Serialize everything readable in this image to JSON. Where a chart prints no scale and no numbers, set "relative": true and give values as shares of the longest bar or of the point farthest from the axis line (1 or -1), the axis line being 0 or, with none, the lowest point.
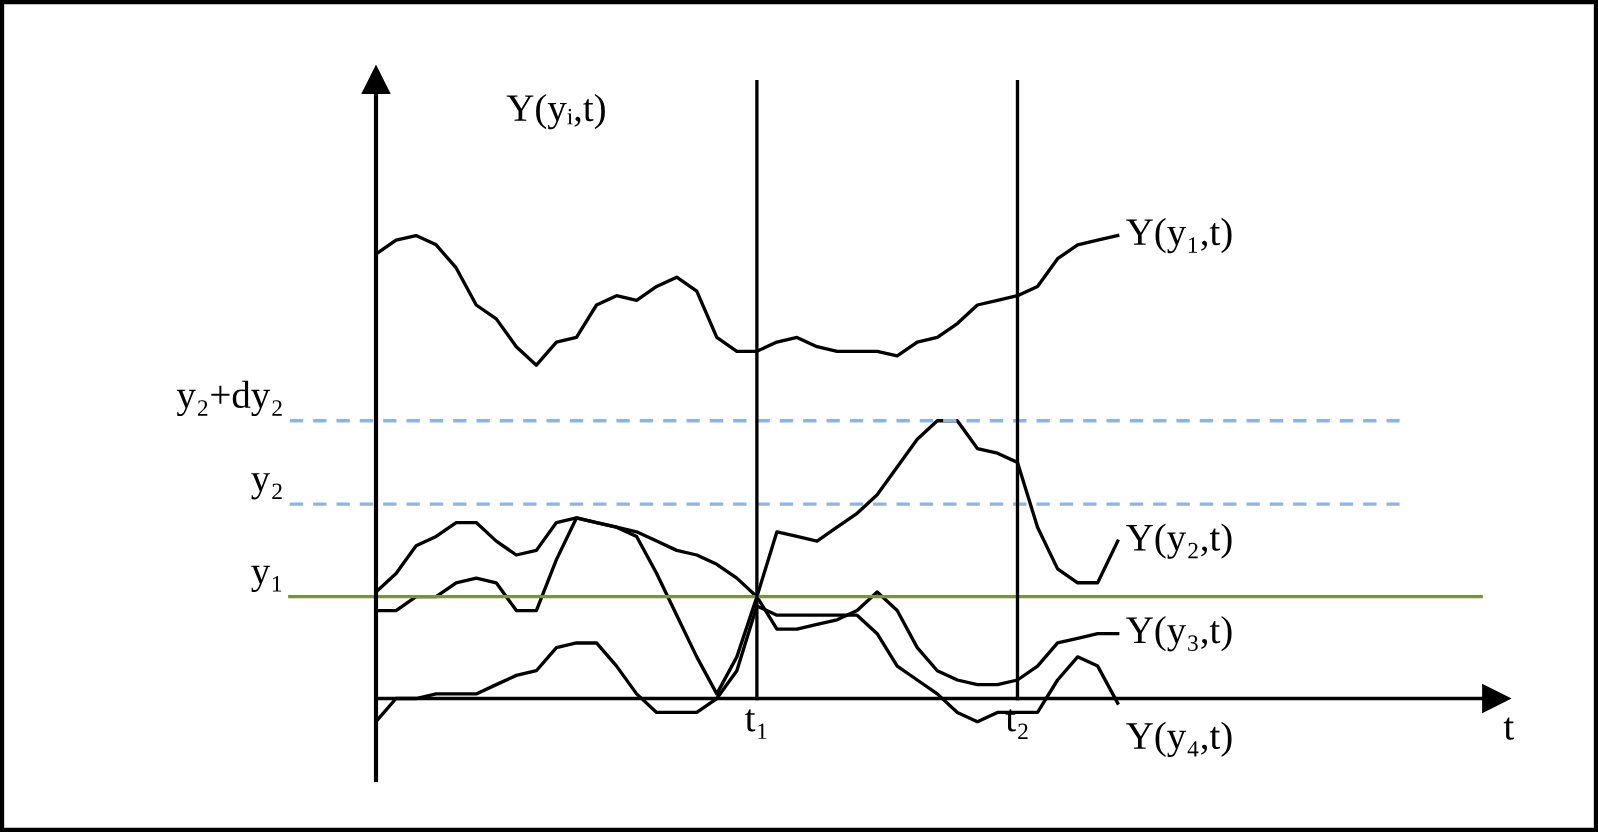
{
  "chart_data": {
    "type": "line",
    "relative": true,
    "ylabel": "Y(yᵢ,t)",
    "annotations": [
      "t"
    ],
    "tick_labels": "x",
    "legend": false,
    "marker": "none",
    "line_style": "solid",
    "categories": [
      null,
      null,
      null,
      null,
      null,
      null,
      null,
      null,
      null,
      null,
      null,
      null,
      null,
      null,
      null,
      null,
      null,
      null,
      null,
      "t₁",
      null,
      null,
      null,
      null,
      null,
      null,
      null,
      null,
      null,
      null,
      null,
      null,
      "t₂",
      null,
      null,
      null,
      null,
      null
    ],
    "series": [
      {
        "name": "Y(y₁,t)",
        "color": "#000000",
        "values": [
          0.96,
          0.99,
          1.0,
          0.98,
          0.93,
          0.85,
          0.82,
          0.76,
          0.72,
          0.77,
          0.78,
          0.85,
          0.87,
          0.86,
          0.89,
          0.91,
          0.88,
          0.78,
          0.75,
          0.75,
          0.77,
          0.78,
          0.76,
          0.75,
          0.75,
          0.75,
          0.74,
          0.77,
          0.78,
          0.81,
          0.85,
          0.86,
          0.87,
          0.89,
          0.95,
          0.98,
          0.99,
          1.0
        ]
      },
      {
        "name": "Y(y₂,t)",
        "color": "#000000",
        "values": [
          0.23,
          0.27,
          0.33,
          0.35,
          0.38,
          0.38,
          0.34,
          0.31,
          0.32,
          0.38,
          0.39,
          0.38,
          0.37,
          0.36,
          0.34,
          0.32,
          0.31,
          0.29,
          0.26,
          0.22,
          0.36,
          0.35,
          0.34,
          0.37,
          0.4,
          0.44,
          0.5,
          0.56,
          0.6,
          0.6,
          0.54,
          0.53,
          0.51,
          0.37,
          0.28,
          0.25,
          0.25,
          0.34
        ]
      },
      {
        "name": "Y(y₃,t)",
        "color": "#000000",
        "values": [
          0.19,
          0.19,
          0.22,
          0.22,
          0.25,
          0.26,
          0.25,
          0.19,
          0.19,
          0.3,
          0.39,
          0.38,
          0.37,
          0.35,
          0.27,
          0.18,
          0.09,
          0.01,
          0.09,
          0.22,
          0.15,
          0.15,
          0.16,
          0.17,
          0.19,
          0.23,
          0.19,
          0.11,
          0.06,
          0.04,
          0.03,
          0.03,
          0.04,
          0.07,
          0.12,
          0.13,
          0.14,
          0.14
        ]
      },
      {
        "name": "Y(y₄,t)",
        "color": "#000000",
        "values": [
          -0.05,
          0,
          0,
          0.01,
          0.01,
          0.01,
          0.03,
          0.05,
          0.06,
          0.11,
          0.12,
          0.12,
          0.07,
          0.01,
          -0.03,
          -0.03,
          -0.03,
          0,
          0.06,
          0.2,
          0.18,
          0.18,
          0.18,
          0.18,
          0.18,
          0.14,
          0.07,
          0.04,
          0.01,
          -0.03,
          -0.05,
          -0.03,
          -0.03,
          -0.03,
          0.04,
          0.09,
          0.07,
          -0.01
        ]
      }
    ],
    "ref_lines": [
      {
        "axis": "y",
        "value": 0.6,
        "label": "y₂+dy₂",
        "color": "#8eb4e3",
        "line_style": "dashed"
      },
      {
        "axis": "y",
        "value": 0.42,
        "label": "y₂",
        "color": "#8eb4e3",
        "line_style": "dashed"
      },
      {
        "axis": "y",
        "value": 0.22,
        "label": "y₁",
        "color": "#77933c",
        "line_style": "solid"
      },
      {
        "axis": "x",
        "value": "t₁",
        "color": "#000000",
        "line_style": "solid"
      },
      {
        "axis": "x",
        "value": "t₂",
        "color": "#000000",
        "line_style": "solid"
      }
    ]
  }
}
